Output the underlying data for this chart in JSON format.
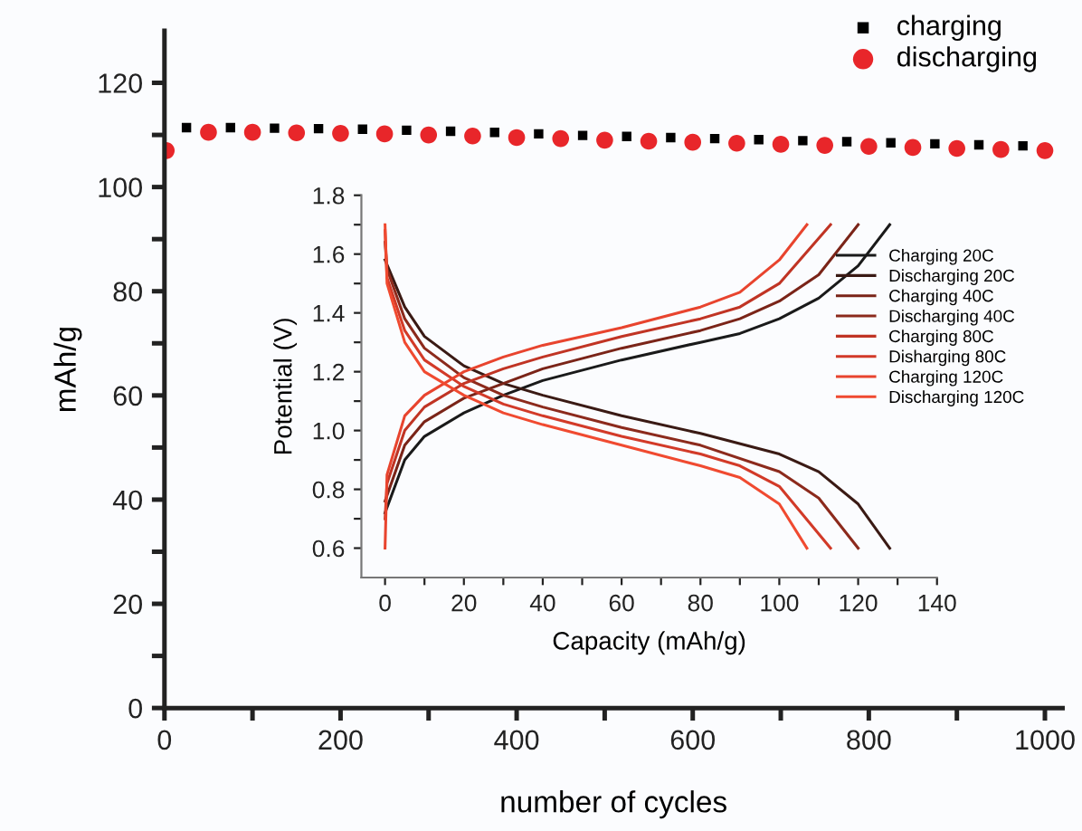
{
  "chart_data": [
    {
      "type": "scatter",
      "xlabel": "number of cycles",
      "ylabel": "mAh/g",
      "xlim": [
        0,
        1020
      ],
      "ylim": [
        0,
        130
      ],
      "xticks": [
        0,
        {
          "value": 100,
          "label": null
        },
        200,
        {
          "value": 300,
          "label": null
        },
        400,
        {
          "value": 500,
          "label": null
        },
        600,
        {
          "value": 700,
          "label": null
        },
        800,
        {
          "value": 900,
          "label": null
        },
        1000
      ],
      "yticks": [
        0,
        {
          "value": 10,
          "label": null
        },
        20,
        {
          "value": 30,
          "label": null
        },
        40,
        {
          "value": 50,
          "label": null
        },
        60,
        {
          "value": 70,
          "label": null
        },
        80,
        {
          "value": 90,
          "label": null
        },
        100,
        {
          "value": 110,
          "label": null
        },
        120
      ],
      "legend": "top right",
      "grid": false,
      "series": [
        {
          "name": "charging",
          "color": "#000000",
          "marker": "square",
          "x": [
            25,
            75,
            125,
            175,
            225,
            275,
            325,
            375,
            425,
            475,
            525,
            575,
            625,
            675,
            725,
            775,
            825,
            875,
            925,
            975
          ],
          "values": [
            111.4,
            111.4,
            111.3,
            111.2,
            111.1,
            110.9,
            110.7,
            110.5,
            110.2,
            109.9,
            109.7,
            109.5,
            109.3,
            109.1,
            108.9,
            108.7,
            108.5,
            108.3,
            108.1,
            107.9
          ]
        },
        {
          "name": "discharging",
          "color": "#e8262a",
          "marker": "circle",
          "x": [
            2,
            50,
            100,
            150,
            200,
            250,
            300,
            350,
            400,
            450,
            500,
            550,
            600,
            650,
            700,
            750,
            800,
            850,
            900,
            950,
            1000
          ],
          "values": [
            107,
            110.5,
            110.5,
            110.4,
            110.3,
            110.2,
            110.0,
            109.8,
            109.5,
            109.3,
            109.0,
            108.8,
            108.6,
            108.4,
            108.2,
            108.0,
            107.8,
            107.6,
            107.4,
            107.2,
            107.0
          ]
        }
      ]
    },
    {
      "type": "line",
      "xlabel": "Capacity (mAh/g)",
      "ylabel": "Potential (V)",
      "xlim": [
        -6,
        140
      ],
      "ylim": [
        0.5,
        1.8
      ],
      "xticks": [
        0,
        {
          "value": 10,
          "label": null
        },
        20,
        {
          "value": 30,
          "label": null
        },
        40,
        {
          "value": 50,
          "label": null
        },
        60,
        {
          "value": 70,
          "label": null
        },
        80,
        {
          "value": 90,
          "label": null
        },
        100,
        {
          "value": 110,
          "label": null
        },
        120,
        {
          "value": 130,
          "label": null
        },
        140
      ],
      "yticks": [
        0.6,
        {
          "value": 0.7,
          "label": null
        },
        0.8,
        {
          "value": 0.9,
          "label": null
        },
        {
          "value": 1.0,
          "label": "1.0"
        },
        {
          "value": 1.1,
          "label": null
        },
        1.2,
        {
          "value": 1.3,
          "label": null
        },
        1.4,
        {
          "value": 1.5,
          "label": null
        },
        1.6,
        {
          "value": 1.7,
          "label": null
        },
        1.8
      ],
      "legend": "right",
      "grid": false,
      "marker": "none",
      "line_style": "solid",
      "series": [
        {
          "name": "Charging 20C",
          "color": "#1a1a1a",
          "x": [
            0,
            5,
            10,
            20,
            30,
            40,
            60,
            80,
            90,
            100,
            110,
            120,
            128
          ],
          "values": [
            0.72,
            0.9,
            0.98,
            1.06,
            1.12,
            1.17,
            1.24,
            1.3,
            1.33,
            1.38,
            1.45,
            1.56,
            1.7
          ]
        },
        {
          "name": "Discharging 20C",
          "color": "#3a1a14",
          "x": [
            0,
            5,
            10,
            20,
            30,
            40,
            60,
            80,
            100,
            110,
            120,
            128
          ],
          "values": [
            1.58,
            1.42,
            1.32,
            1.22,
            1.16,
            1.12,
            1.05,
            0.99,
            0.92,
            0.86,
            0.75,
            0.6
          ]
        },
        {
          "name": "Charging 40C",
          "color": "#7a2418",
          "x": [
            0,
            5,
            10,
            20,
            30,
            40,
            60,
            80,
            90,
            100,
            110,
            120
          ],
          "values": [
            0.76,
            0.95,
            1.03,
            1.11,
            1.16,
            1.21,
            1.28,
            1.34,
            1.38,
            1.44,
            1.53,
            1.7
          ]
        },
        {
          "name": "Discharging 40C",
          "color": "#8c2a1c",
          "x": [
            0,
            0.5,
            5,
            10,
            20,
            30,
            40,
            60,
            80,
            100,
            110,
            120
          ],
          "values": [
            1.64,
            1.55,
            1.38,
            1.28,
            1.18,
            1.12,
            1.08,
            1.01,
            0.95,
            0.86,
            0.77,
            0.6
          ]
        },
        {
          "name": "Charging 80C",
          "color": "#c03424",
          "x": [
            0,
            0.5,
            5,
            10,
            20,
            30,
            40,
            60,
            80,
            90,
            100,
            113
          ],
          "values": [
            0.7,
            0.82,
            1.0,
            1.08,
            1.16,
            1.21,
            1.25,
            1.32,
            1.38,
            1.42,
            1.5,
            1.7
          ]
        },
        {
          "name": "Disharging 80C",
          "color": "#d23a28",
          "x": [
            0,
            0.5,
            5,
            10,
            20,
            30,
            40,
            60,
            80,
            90,
            100,
            113
          ],
          "values": [
            1.68,
            1.52,
            1.34,
            1.24,
            1.15,
            1.09,
            1.05,
            0.98,
            0.92,
            0.88,
            0.81,
            0.6
          ]
        },
        {
          "name": "Charging 120C",
          "color": "#e8442e",
          "x": [
            0,
            0.5,
            5,
            10,
            20,
            30,
            40,
            60,
            80,
            90,
            100,
            107
          ],
          "values": [
            0.6,
            0.85,
            1.05,
            1.12,
            1.2,
            1.25,
            1.29,
            1.35,
            1.42,
            1.47,
            1.58,
            1.7
          ]
        },
        {
          "name": "Discharging 120C",
          "color": "#f04a30",
          "x": [
            0,
            0.5,
            5,
            10,
            20,
            30,
            40,
            60,
            80,
            90,
            100,
            107
          ],
          "values": [
            1.7,
            1.5,
            1.3,
            1.2,
            1.12,
            1.06,
            1.02,
            0.95,
            0.88,
            0.84,
            0.75,
            0.6
          ]
        }
      ]
    }
  ]
}
